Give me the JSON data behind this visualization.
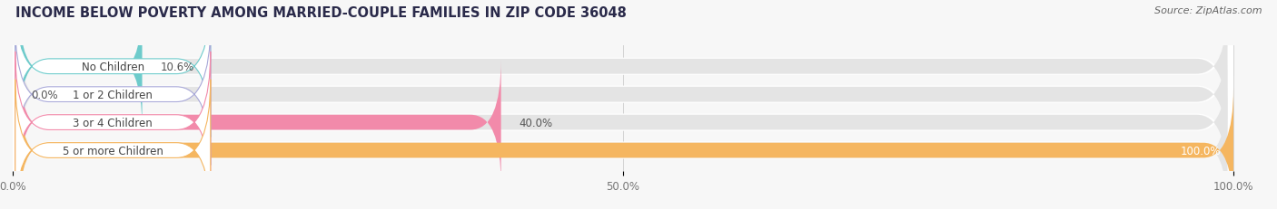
{
  "title": "INCOME BELOW POVERTY AMONG MARRIED-COUPLE FAMILIES IN ZIP CODE 36048",
  "source": "Source: ZipAtlas.com",
  "categories": [
    "No Children",
    "1 or 2 Children",
    "3 or 4 Children",
    "5 or more Children"
  ],
  "values": [
    10.6,
    0.0,
    40.0,
    100.0
  ],
  "bar_colors": [
    "#6dcbcb",
    "#a8a8d8",
    "#f28aaa",
    "#f5b660"
  ],
  "max_value": 100.0,
  "xtick_labels": [
    "0.0%",
    "50.0%",
    "100.0%"
  ],
  "background_color": "#f7f7f7",
  "bar_background_color": "#e4e4e4",
  "label_box_color": "#ffffff",
  "title_fontsize": 10.5,
  "source_fontsize": 8,
  "label_fontsize": 8.5,
  "value_fontsize": 8.5,
  "tick_fontsize": 8.5
}
